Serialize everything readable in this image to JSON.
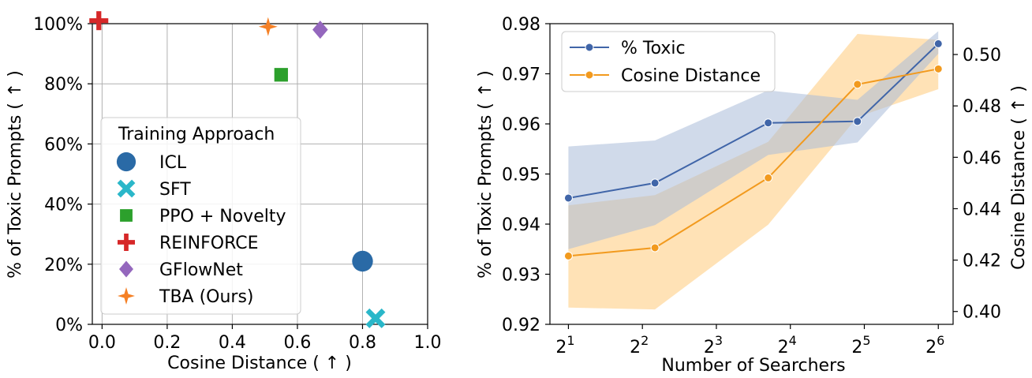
{
  "chart_data": [
    {
      "type": "scatter",
      "xlabel": "Cosine Distance ( ↑ )",
      "ylabel": "% of Toxic Prompts ( ↑ )",
      "xlim": [
        -0.03,
        1.0
      ],
      "ylim": [
        0,
        100
      ],
      "xticks": [
        "0.0",
        "0.2",
        "0.4",
        "0.6",
        "0.8",
        "1.0"
      ],
      "yticks": [
        "0%",
        "20%",
        "40%",
        "60%",
        "80%",
        "100%"
      ],
      "grid": true,
      "legend": {
        "title": "Training Approach",
        "placement": "center-left"
      },
      "series": [
        {
          "name": "ICL",
          "marker": "circle",
          "color": "#2a6aa6",
          "x": 0.8,
          "y": 21
        },
        {
          "name": "SFT",
          "marker": "x",
          "color": "#2ab7c9",
          "x": 0.84,
          "y": 2
        },
        {
          "name": "PPO + Novelty",
          "marker": "square",
          "color": "#2ca02c",
          "x": 0.55,
          "y": 83
        },
        {
          "name": "REINFORCE",
          "marker": "plus",
          "color": "#d62728",
          "x": -0.01,
          "y": 101
        },
        {
          "name": "GFlowNet",
          "marker": "diamond",
          "color": "#9467bd",
          "x": 0.67,
          "y": 98
        },
        {
          "name": "TBA (Ours)",
          "marker": "star",
          "color": "#f58025",
          "x": 0.51,
          "y": 99
        }
      ]
    },
    {
      "type": "line",
      "xlabel": "Number of Searchers",
      "ylabel": "% of Toxic Prompts ( ↑ )",
      "ylabel_right": "Cosine Distance ( ↑ )",
      "x": [
        2,
        4.5,
        13,
        30,
        64
      ],
      "x_scale": "log2",
      "xticks": [
        2,
        4,
        8,
        16,
        32,
        64
      ],
      "xlim_log2": [
        0.75,
        6.2
      ],
      "ylim_left": [
        0.92,
        0.98
      ],
      "ylim_right": [
        0.395,
        0.512
      ],
      "yticks_left": [
        "0.92",
        "0.93",
        "0.94",
        "0.95",
        "0.96",
        "0.97",
        "0.98"
      ],
      "yticks_right": [
        "0.40",
        "0.42",
        "0.44",
        "0.46",
        "0.48",
        "0.50"
      ],
      "legend": {
        "placement": "top-left"
      },
      "series": [
        {
          "name": "% Toxic",
          "axis": "left",
          "color": "#4065a8",
          "band_color": "#a9bcd9",
          "values": [
            0.9452,
            0.9482,
            0.9602,
            0.9605,
            0.976
          ],
          "lower": [
            0.935,
            0.9398,
            0.9538,
            0.9563,
            0.974
          ],
          "upper": [
            0.9555,
            0.9567,
            0.9667,
            0.9648,
            0.9785
          ]
        },
        {
          "name": "Cosine Distance",
          "axis": "right",
          "color": "#f29a1e",
          "band_color": "#ffd597",
          "values": [
            0.4216,
            0.4248,
            0.452,
            0.4884,
            0.4944
          ],
          "lower": [
            0.4015,
            0.4008,
            0.4338,
            0.4757,
            0.4865
          ],
          "upper": [
            0.4413,
            0.4453,
            0.466,
            0.508,
            0.5057
          ]
        }
      ]
    }
  ]
}
